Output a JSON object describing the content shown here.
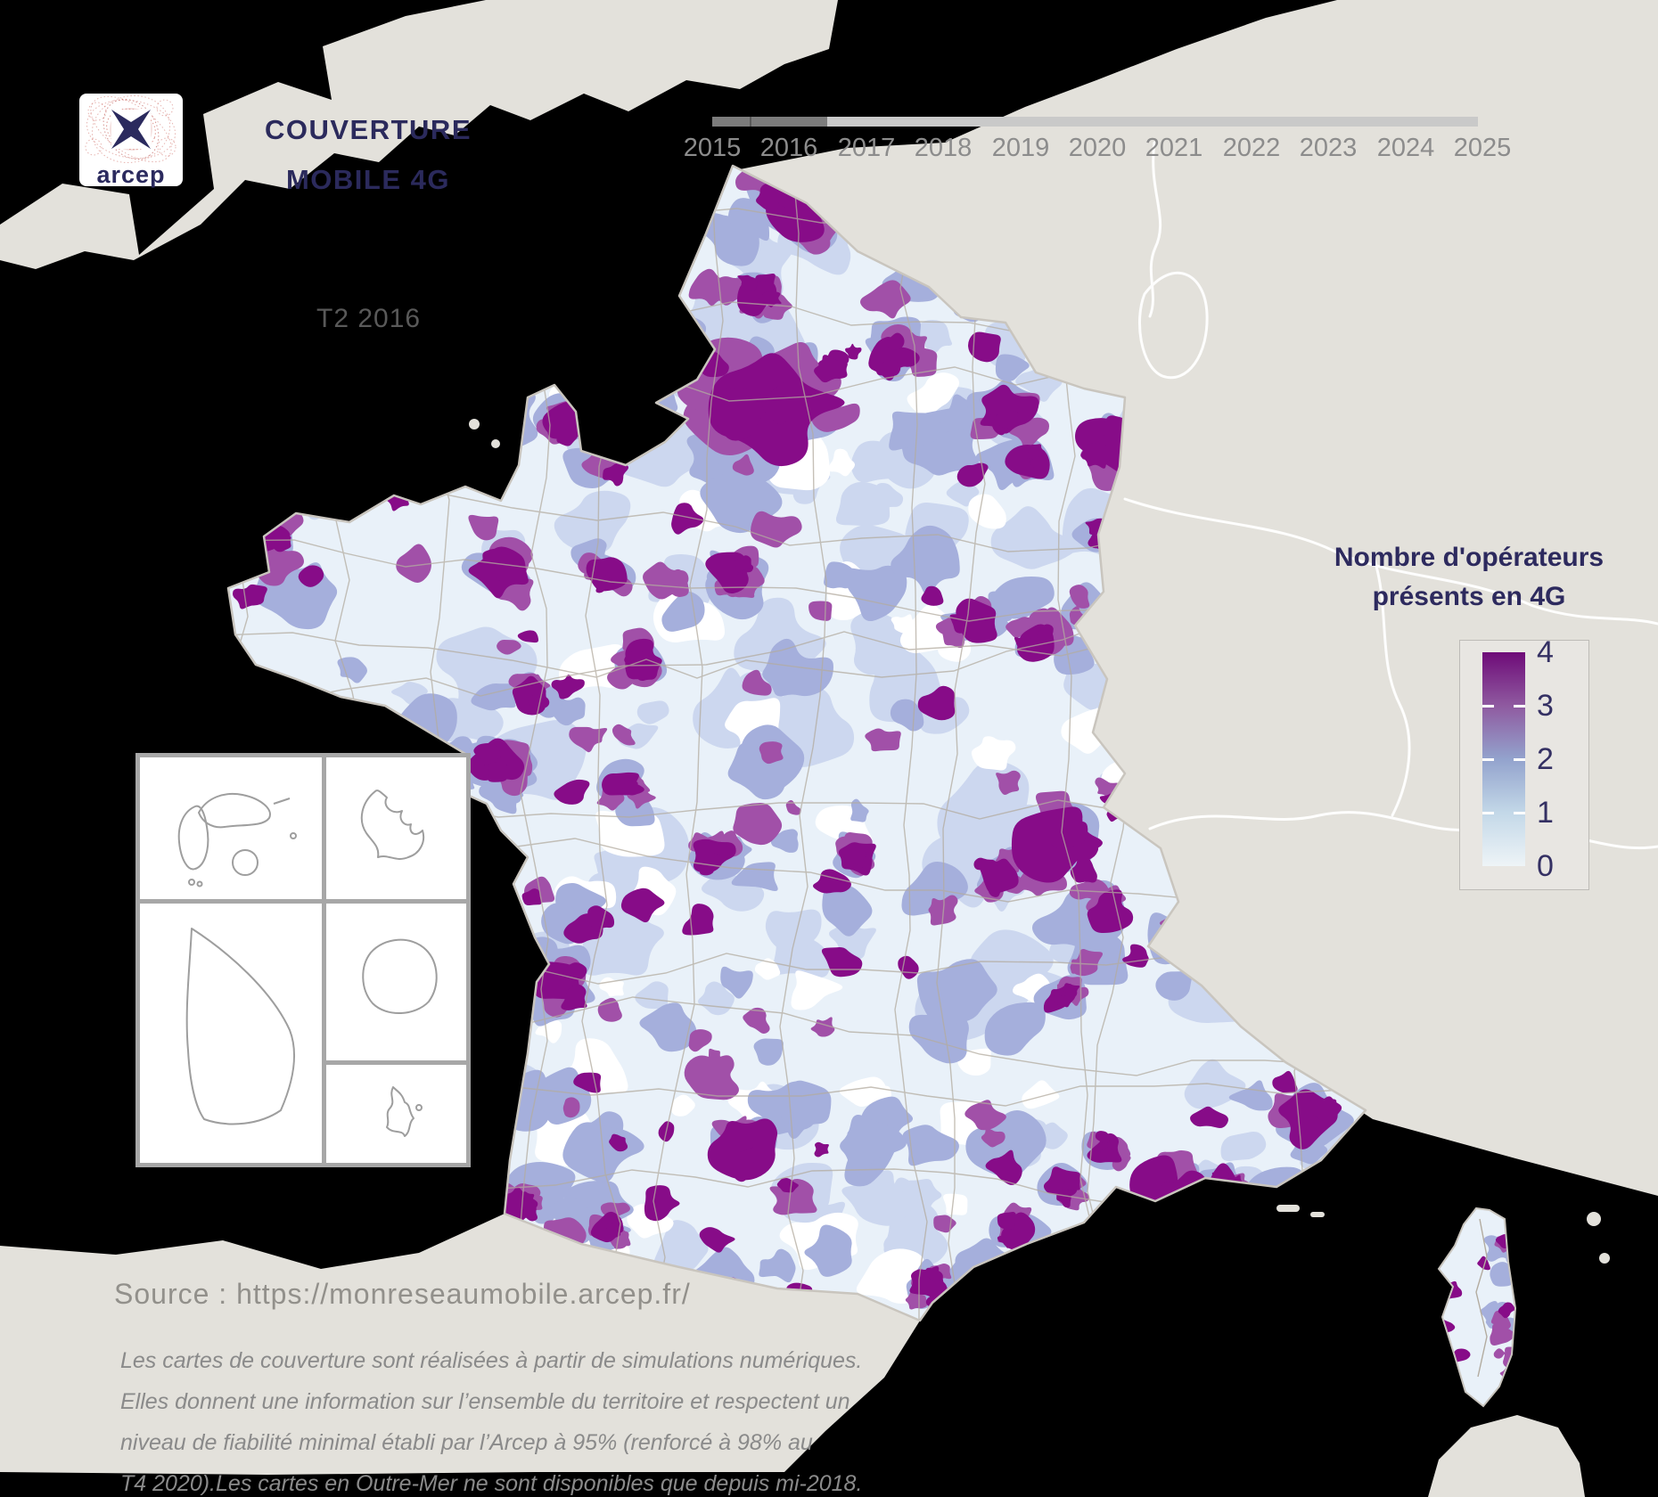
{
  "branding": {
    "logo_text": "arcep"
  },
  "title": {
    "line1": "COUVERTURE",
    "line2": "MOBILE 4G"
  },
  "timeline": {
    "years": [
      "2015",
      "2016",
      "2017",
      "2018",
      "2019",
      "2020",
      "2021",
      "2022",
      "2023",
      "2024",
      "2025"
    ],
    "period_label": "T2 2016",
    "progress_percent": 15
  },
  "legend": {
    "title_line1": "Nombre d'opérateurs",
    "title_line2": "présents en 4G",
    "tick_labels": [
      "4",
      "3",
      "2",
      "1",
      "0"
    ],
    "gradient_stops": [
      "#6e0b78",
      "#8f5aa0",
      "#93a3cd",
      "#c3d8e8",
      "#eef4f7"
    ]
  },
  "map": {
    "type": "choropleth",
    "colors": {
      "operators_4": "#870c88",
      "operators_3": "#a150a8",
      "operators_2": "#a5afdc",
      "operators_1": "#ccd7ef",
      "operators_0": "#ffffff",
      "base": "#e9f1f9",
      "neighbor_land": "#e3e1db",
      "sea": "#000000",
      "department_border": "#b3aca0",
      "country_border": "#ffffff",
      "coast_outline": "#c9c5be"
    }
  },
  "source": {
    "label": "Source : https://monreseaumobile.arcep.fr/"
  },
  "disclaimer": {
    "lines": [
      "Les cartes de couverture sont réalisées à partir de simulations numériques.",
      "Elles donnent une information sur l’ensemble du territoire et respectent un",
      "niveau de fiabilité minimal établi par l’Arcep à 95% (renforcé à 98% au",
      "T4 2020).Les cartes en Outre-Mer ne sont disponibles que depuis mi-2018."
    ]
  }
}
